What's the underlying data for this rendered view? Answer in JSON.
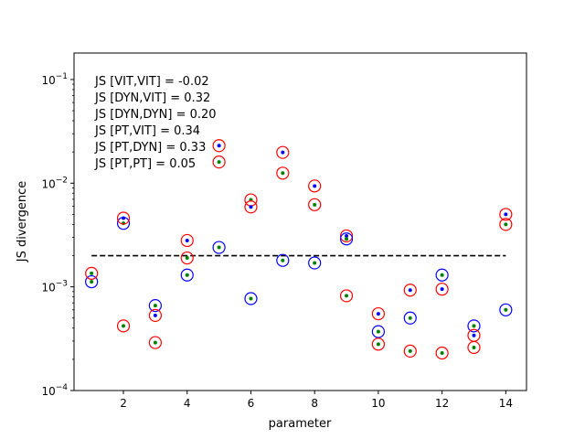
{
  "chart_data": {
    "type": "scatter",
    "title": "",
    "xlabel": "parameter",
    "ylabel": "JS divergence",
    "xlim": [
      0.45,
      14.65
    ],
    "ylim": [
      0.0001,
      0.18
    ],
    "yscale": "log",
    "grid": false,
    "x_ticks": [
      2,
      4,
      6,
      8,
      10,
      12,
      14
    ],
    "x_tick_labels": [
      "2",
      "4",
      "6",
      "8",
      "10",
      "12",
      "14"
    ],
    "y_ticks": [
      0.0001,
      0.001,
      0.01,
      0.1
    ],
    "y_tick_labels": [
      {
        "base": "10",
        "exp": "−4"
      },
      {
        "base": "10",
        "exp": "−3"
      },
      {
        "base": "10",
        "exp": "−2"
      },
      {
        "base": "10",
        "exp": "−1"
      }
    ],
    "threshold": {
      "value": 0.002,
      "x_range": [
        1,
        14
      ],
      "style": "dashed",
      "color": "#000000"
    },
    "annotations": [
      "JS [VIT,VIT] = -0.02",
      "JS [DYN,VIT] = 0.32",
      "JS [DYN,DYN] = 0.20",
      "JS [PT,VIT] = 0.34",
      "JS [PT,DYN] = 0.33",
      "JS [PT,PT] = 0.05"
    ],
    "colors": {
      "ring_blue": "#0000ff",
      "ring_red": "#ff0000",
      "dot_blue": "#0000ff",
      "dot_green": "#008000"
    },
    "points": [
      {
        "x": 1,
        "y": 0.00112,
        "ring": "blue",
        "dot": "green"
      },
      {
        "x": 1,
        "y": 0.00135,
        "ring": "red",
        "dot": "green"
      },
      {
        "x": 2,
        "y": 0.0041,
        "ring": "blue",
        "dot": "green"
      },
      {
        "x": 2,
        "y": 0.0046,
        "ring": "red",
        "dot": "blue"
      },
      {
        "x": 2,
        "y": 0.00042,
        "ring": "red",
        "dot": "green"
      },
      {
        "x": 3,
        "y": 0.00066,
        "ring": "blue",
        "dot": "green"
      },
      {
        "x": 3,
        "y": 0.00053,
        "ring": "red",
        "dot": "blue"
      },
      {
        "x": 3,
        "y": 0.00029,
        "ring": "red",
        "dot": "green"
      },
      {
        "x": 4,
        "y": 0.0028,
        "ring": "red",
        "dot": "blue"
      },
      {
        "x": 4,
        "y": 0.0019,
        "ring": "red",
        "dot": "green"
      },
      {
        "x": 4,
        "y": 0.0013,
        "ring": "blue",
        "dot": "green"
      },
      {
        "x": 5,
        "y": 0.023,
        "ring": "red",
        "dot": "blue"
      },
      {
        "x": 5,
        "y": 0.016,
        "ring": "red",
        "dot": "green"
      },
      {
        "x": 5,
        "y": 0.0024,
        "ring": "blue",
        "dot": "green"
      },
      {
        "x": 6,
        "y": 0.0069,
        "ring": "red",
        "dot": "green"
      },
      {
        "x": 6,
        "y": 0.0059,
        "ring": "red",
        "dot": "blue"
      },
      {
        "x": 6,
        "y": 0.00077,
        "ring": "blue",
        "dot": "green"
      },
      {
        "x": 7,
        "y": 0.0198,
        "ring": "red",
        "dot": "blue"
      },
      {
        "x": 7,
        "y": 0.0125,
        "ring": "red",
        "dot": "green"
      },
      {
        "x": 7,
        "y": 0.0018,
        "ring": "blue",
        "dot": "green"
      },
      {
        "x": 8,
        "y": 0.0094,
        "ring": "red",
        "dot": "blue"
      },
      {
        "x": 8,
        "y": 0.0062,
        "ring": "red",
        "dot": "green"
      },
      {
        "x": 8,
        "y": 0.0017,
        "ring": "blue",
        "dot": "green"
      },
      {
        "x": 9,
        "y": 0.0031,
        "ring": "red",
        "dot": "blue"
      },
      {
        "x": 9,
        "y": 0.0029,
        "ring": "blue",
        "dot": "green"
      },
      {
        "x": 9,
        "y": 0.00082,
        "ring": "red",
        "dot": "green"
      },
      {
        "x": 10,
        "y": 0.00055,
        "ring": "red",
        "dot": "blue"
      },
      {
        "x": 10,
        "y": 0.00037,
        "ring": "blue",
        "dot": "green"
      },
      {
        "x": 10,
        "y": 0.00028,
        "ring": "red",
        "dot": "green"
      },
      {
        "x": 11,
        "y": 0.00093,
        "ring": "red",
        "dot": "blue"
      },
      {
        "x": 11,
        "y": 0.0005,
        "ring": "blue",
        "dot": "green"
      },
      {
        "x": 11,
        "y": 0.00024,
        "ring": "red",
        "dot": "green"
      },
      {
        "x": 12,
        "y": 0.0013,
        "ring": "blue",
        "dot": "green"
      },
      {
        "x": 12,
        "y": 0.00095,
        "ring": "red",
        "dot": "blue"
      },
      {
        "x": 12,
        "y": 0.00023,
        "ring": "red",
        "dot": "green"
      },
      {
        "x": 13,
        "y": 0.00042,
        "ring": "blue",
        "dot": "green"
      },
      {
        "x": 13,
        "y": 0.00034,
        "ring": "red",
        "dot": "blue"
      },
      {
        "x": 13,
        "y": 0.00026,
        "ring": "red",
        "dot": "green"
      },
      {
        "x": 14,
        "y": 0.005,
        "ring": "red",
        "dot": "blue"
      },
      {
        "x": 14,
        "y": 0.004,
        "ring": "red",
        "dot": "green"
      },
      {
        "x": 14,
        "y": 0.0006,
        "ring": "blue",
        "dot": "green"
      }
    ]
  }
}
